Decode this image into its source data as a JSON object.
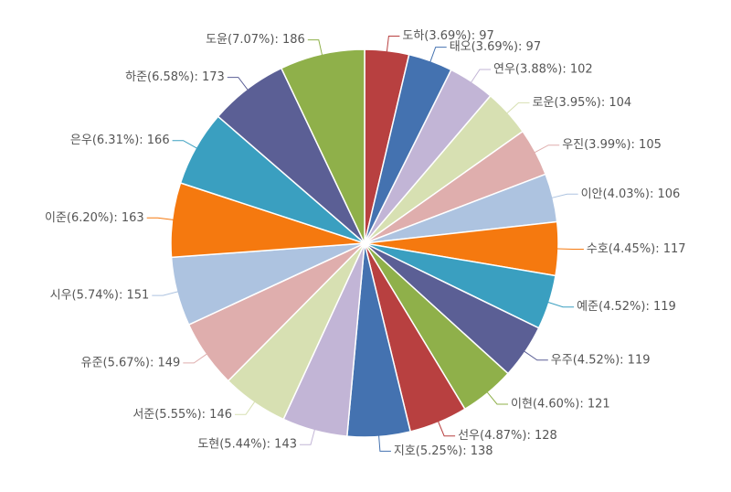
{
  "chart_data": {
    "type": "pie",
    "title": "",
    "start_angle_deg": 0,
    "direction": "clockwise",
    "slices": [
      {
        "name": "도하",
        "value": 97,
        "percent": "3.69%",
        "color": "#b84040"
      },
      {
        "name": "태오",
        "value": 97,
        "percent": "3.69%",
        "color": "#4472b0"
      },
      {
        "name": "연우",
        "value": 102,
        "percent": "3.88%",
        "color": "#c2b5d6"
      },
      {
        "name": "로운",
        "value": 104,
        "percent": "3.95%",
        "color": "#d7e0b2"
      },
      {
        "name": "우진",
        "value": 105,
        "percent": "3.99%",
        "color": "#dfaead"
      },
      {
        "name": "이안",
        "value": 106,
        "percent": "4.03%",
        "color": "#adc3e0"
      },
      {
        "name": "수호",
        "value": 117,
        "percent": "4.45%",
        "color": "#f5790f"
      },
      {
        "name": "예준",
        "value": 119,
        "percent": "4.52%",
        "color": "#3a9fc0"
      },
      {
        "name": "우주",
        "value": 119,
        "percent": "4.52%",
        "color": "#5b5f95"
      },
      {
        "name": "이현",
        "value": 121,
        "percent": "4.60%",
        "color": "#8fb04a"
      },
      {
        "name": "선우",
        "value": 128,
        "percent": "4.87%",
        "color": "#b84040"
      },
      {
        "name": "지호",
        "value": 138,
        "percent": "5.25%",
        "color": "#4472b0"
      },
      {
        "name": "도현",
        "value": 143,
        "percent": "5.44%",
        "color": "#c2b5d6"
      },
      {
        "name": "서준",
        "value": 146,
        "percent": "5.55%",
        "color": "#d7e0b2"
      },
      {
        "name": "유준",
        "value": 149,
        "percent": "5.67%",
        "color": "#dfaead"
      },
      {
        "name": "시우",
        "value": 151,
        "percent": "5.74%",
        "color": "#adc3e0"
      },
      {
        "name": "이준",
        "value": 163,
        "percent": "6.20%",
        "color": "#f5790f"
      },
      {
        "name": "은우",
        "value": 166,
        "percent": "6.31%",
        "color": "#3a9fc0"
      },
      {
        "name": "하준",
        "value": 173,
        "percent": "6.58%",
        "color": "#5b5f95"
      },
      {
        "name": "도윤",
        "value": 186,
        "percent": "7.07%",
        "color": "#8fb04a"
      }
    ]
  }
}
